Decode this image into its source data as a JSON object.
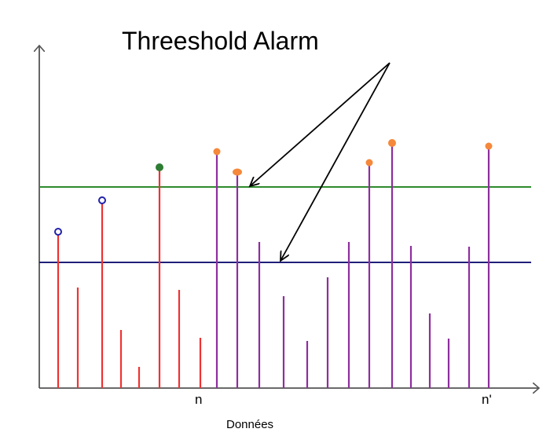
{
  "diagram": {
    "title": "Threeshold Alarm",
    "x_axis_label": "Données",
    "tick_labels": {
      "n": "n",
      "n_prime": "n'"
    },
    "colors": {
      "axis": "#555555",
      "threshold_high": "#2e8b2e",
      "threshold_low": "#1f1f7a",
      "stem_before_n": "#ee3333",
      "stem_after_n": "#8e2e9e",
      "marker_ring": "#2222aa",
      "marker_green": "#2e7d32",
      "marker_orange": "#f5883a",
      "arrow": "#000000"
    }
  }
}
